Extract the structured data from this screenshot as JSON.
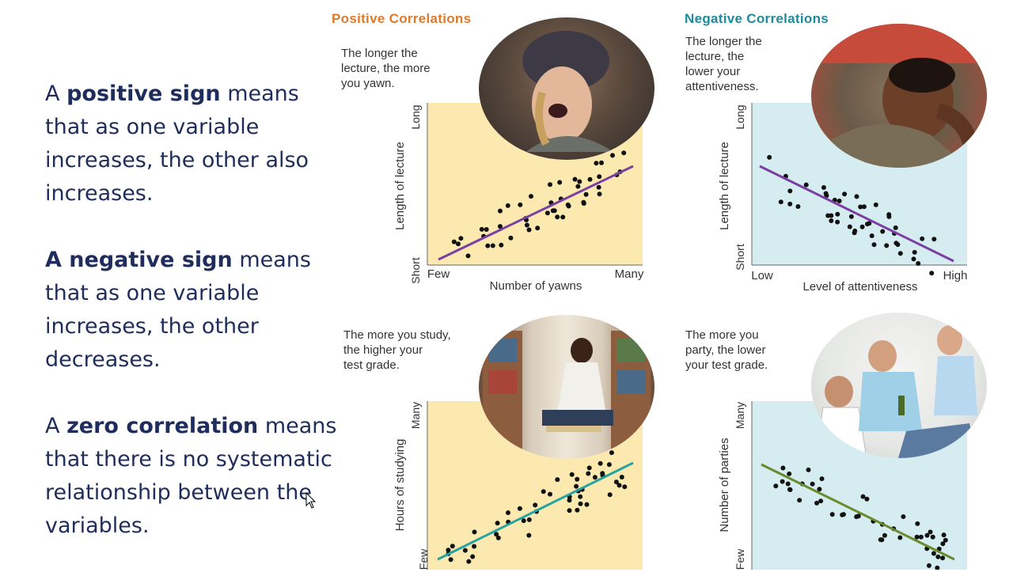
{
  "left_text": {
    "p1_pre": "A ",
    "p1_bold": "positive sign",
    "p1_post": " means that as one variable increases, the other also increases.",
    "p2_bold": "A negative sign",
    "p2_post": " means that as one variable increases, the other decreases.",
    "p3_pre": "A ",
    "p3_bold": "zero correlation",
    "p3_post": " means that there is no systematic relationship between the variables."
  },
  "figure": {
    "positive_title": "Positive Correlations",
    "negative_title": "Negative Correlations",
    "colors": {
      "positive_title": "#e07a2b",
      "negative_title": "#1f8a9c",
      "yellow_bg": "#fbe9b0",
      "blue_bg": "#d5ecf0",
      "purple_line": "#7a3fa0",
      "teal_line": "#25a3a3",
      "olive_line": "#6a8a2e"
    },
    "panels": [
      {
        "caption": "The longer the\nlecture, the more\nyou yawn.",
        "ylabel": "Length of lecture",
        "xlabel": "Number of yawns",
        "y_low": "Short",
        "y_high": "Long",
        "x_low": "Few",
        "x_high": "Many",
        "photo": "yawning-woman-photo"
      },
      {
        "caption": "The longer the\nlecture, the\nlower your\nattentiveness.",
        "ylabel": "Length of lecture",
        "xlabel": "Level of attentiveness",
        "y_low": "Short",
        "y_high": "Long",
        "x_low": "Low",
        "x_high": "High",
        "photo": "bored-student-photo"
      },
      {
        "caption": "The more you study,\nthe higher your\ntest grade.",
        "ylabel": "Hours of studying",
        "xlabel": "",
        "y_low": "Few",
        "y_high": "Many",
        "x_low": "",
        "x_high": "",
        "photo": "studying-student-photo"
      },
      {
        "caption": "The more you\nparty, the lower\nyour test grade.",
        "ylabel": "Number of parties",
        "xlabel": "",
        "y_low": "Few",
        "y_high": "Many",
        "x_low": "",
        "x_high": "",
        "photo": "party-friends-photo"
      }
    ]
  }
}
